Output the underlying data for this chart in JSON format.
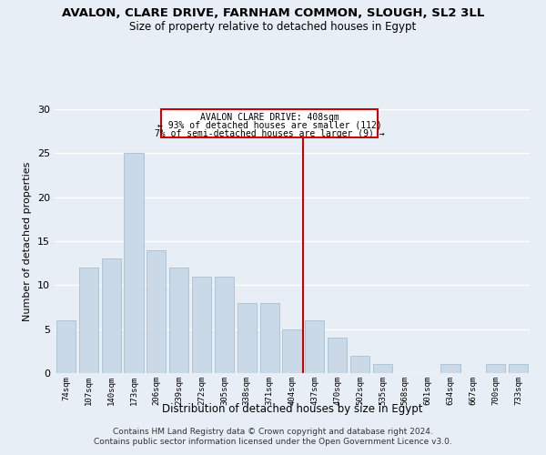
{
  "title": "AVALON, CLARE DRIVE, FARNHAM COMMON, SLOUGH, SL2 3LL",
  "subtitle": "Size of property relative to detached houses in Egypt",
  "xlabel": "Distribution of detached houses by size in Egypt",
  "ylabel": "Number of detached properties",
  "categories": [
    "74sqm",
    "107sqm",
    "140sqm",
    "173sqm",
    "206sqm",
    "239sqm",
    "272sqm",
    "305sqm",
    "338sqm",
    "371sqm",
    "404sqm",
    "437sqm",
    "470sqm",
    "502sqm",
    "535sqm",
    "568sqm",
    "601sqm",
    "634sqm",
    "667sqm",
    "700sqm",
    "733sqm"
  ],
  "values": [
    6,
    12,
    13,
    25,
    14,
    12,
    11,
    11,
    8,
    8,
    5,
    6,
    4,
    2,
    1,
    0,
    0,
    1,
    0,
    1,
    1
  ],
  "bar_color": "#c9d9e8",
  "bar_edge_color": "#a8bfd0",
  "background_color": "#e8eef5",
  "grid_color": "#ffffff",
  "marker_line_color": "#cc0000",
  "annotation_text_line1": "AVALON CLARE DRIVE: 408sqm",
  "annotation_text_line2": "← 93% of detached houses are smaller (112)",
  "annotation_text_line3": "7% of semi-detached houses are larger (9) →",
  "annotation_box_color": "#cc0000",
  "ylim": [
    0,
    30
  ],
  "yticks": [
    0,
    5,
    10,
    15,
    20,
    25,
    30
  ],
  "footer_line1": "Contains HM Land Registry data © Crown copyright and database right 2024.",
  "footer_line2": "Contains public sector information licensed under the Open Government Licence v3.0."
}
